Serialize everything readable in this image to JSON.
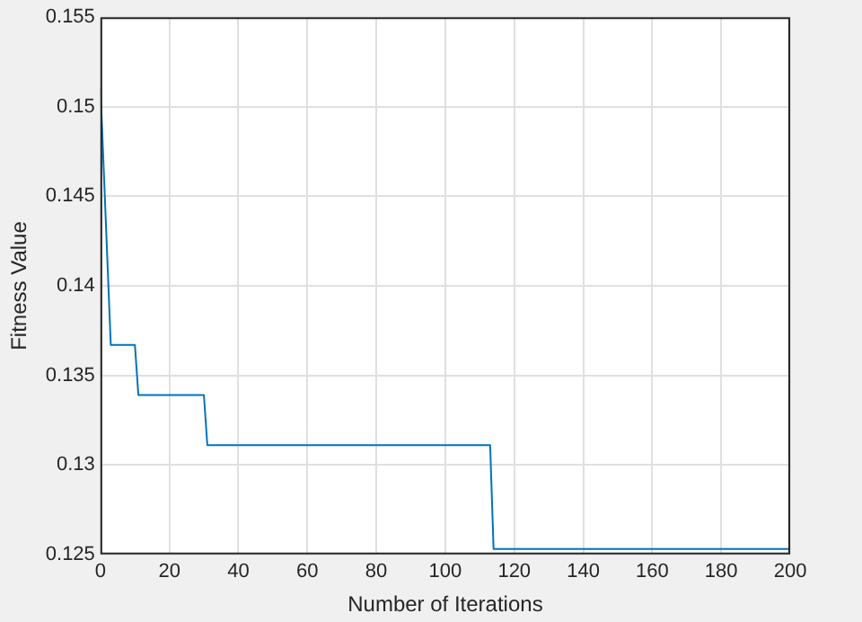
{
  "chart_data": {
    "type": "line",
    "xlabel": "Number of Iterations",
    "ylabel": "Fitness Value",
    "x": [
      0,
      3,
      10,
      11,
      30,
      31,
      113,
      114,
      200
    ],
    "series": [
      {
        "color": "#0072bd",
        "values": [
          0.1511,
          0.1367,
          0.1367,
          0.1339,
          0.1339,
          0.1311,
          0.1311,
          0.1253,
          0.1253
        ]
      }
    ],
    "xlim": [
      0,
      200
    ],
    "xticks": [
      0,
      20,
      40,
      60,
      80,
      100,
      120,
      140,
      160,
      180,
      200
    ],
    "ylim": [
      0.125,
      0.155
    ],
    "yticks": [
      0.125,
      0.13,
      0.135,
      0.14,
      0.145,
      0.15,
      0.155
    ],
    "grid": true,
    "legend": false,
    "marker": "none",
    "line_style": "solid"
  }
}
